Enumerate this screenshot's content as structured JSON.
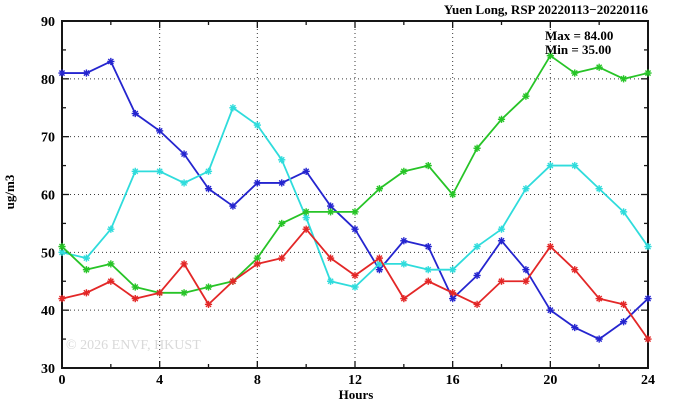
{
  "title": "Yuen Long, RSP 20220113−20220116",
  "legend": {
    "max_label": "Max = 84.00",
    "min_label": "Min = 35.00"
  },
  "watermark": "© 2026 ENVF, HKUST",
  "chart_data": {
    "type": "line",
    "title": "Yuen Long, RSP 20220113−20220116",
    "xlabel": "Hours",
    "ylabel": "ug/m3",
    "xlim": [
      0,
      24
    ],
    "ylim": [
      30,
      90
    ],
    "grid": true,
    "legend_position": "top-right-inside",
    "max": 84.0,
    "min": 35.0,
    "x_major_ticks": [
      0,
      4,
      8,
      12,
      16,
      20,
      24
    ],
    "x_minor_step": 2,
    "y_major_ticks": [
      30,
      40,
      50,
      60,
      70,
      80,
      90
    ],
    "y_minor_step": 5,
    "x": [
      0,
      1,
      2,
      3,
      4,
      5,
      6,
      7,
      8,
      9,
      10,
      11,
      12,
      13,
      14,
      15,
      16,
      17,
      18,
      19,
      20,
      21,
      22,
      23,
      24
    ],
    "series": [
      {
        "name": "blue",
        "color": "#2525cf",
        "values": [
          81,
          81,
          83,
          74,
          71,
          67,
          61,
          58,
          62,
          62,
          64,
          58,
          54,
          47,
          52,
          51,
          42,
          46,
          52,
          47,
          40,
          37,
          35,
          38,
          42
        ]
      },
      {
        "name": "cyan",
        "color": "#2fdcdc",
        "values": [
          50,
          49,
          54,
          64,
          64,
          62,
          64,
          75,
          72,
          66,
          56,
          45,
          44,
          48,
          48,
          47,
          47,
          51,
          54,
          61,
          65,
          65,
          61,
          57,
          51
        ]
      },
      {
        "name": "green",
        "color": "#27c427",
        "values": [
          51,
          47,
          48,
          44,
          43,
          43,
          44,
          45,
          49,
          55,
          57,
          57,
          57,
          61,
          64,
          65,
          60,
          68,
          73,
          77,
          84,
          81,
          82,
          80,
          81
        ]
      },
      {
        "name": "red",
        "color": "#e32727",
        "values": [
          42,
          43,
          45,
          42,
          43,
          48,
          41,
          45,
          48,
          49,
          54,
          49,
          46,
          49,
          42,
          45,
          43,
          41,
          45,
          45,
          51,
          47,
          42,
          41,
          35
        ]
      }
    ]
  }
}
